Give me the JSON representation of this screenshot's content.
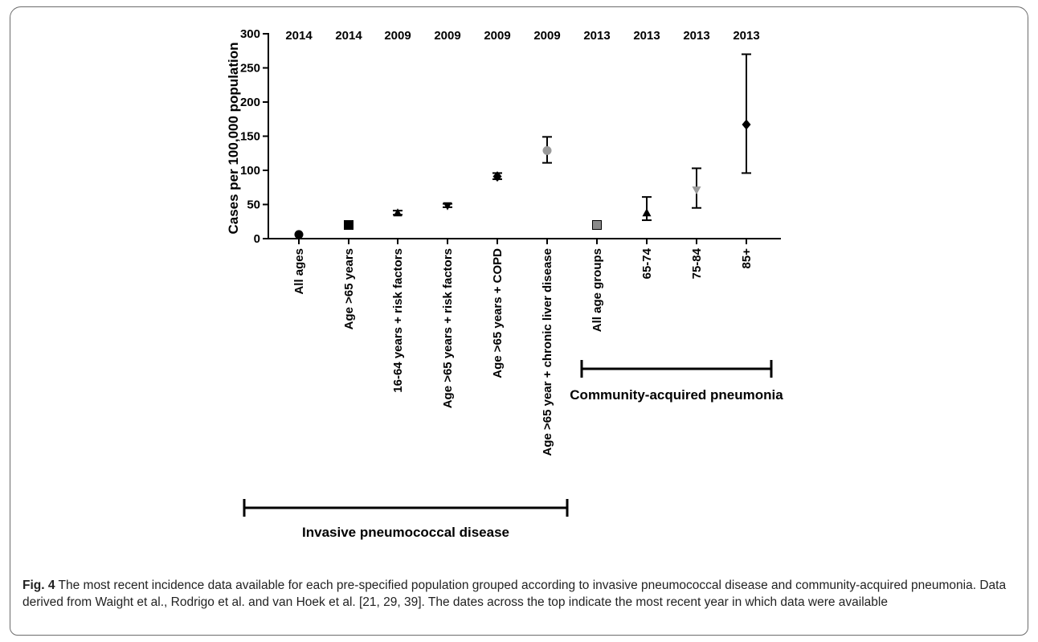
{
  "chart_data": {
    "type": "scatter",
    "ylabel": "Cases per 100,000 population",
    "ylim": [
      0,
      300
    ],
    "yticks": [
      "0",
      "50",
      "100",
      "150",
      "200",
      "250",
      "300"
    ],
    "ytick_values": [
      0,
      50,
      100,
      150,
      200,
      250,
      300
    ],
    "categories": [
      "All ages",
      "Age >65 years",
      "16-64 years + risk factors",
      "Age >65 years + risk factors",
      "Age >65 years + COPD",
      "Age >65 year + chronic liver disease",
      "All age groups",
      "65-74",
      "75-84",
      "85+"
    ],
    "years": [
      "2014",
      "2014",
      "2009",
      "2009",
      "2009",
      "2009",
      "2013",
      "2013",
      "2013",
      "2013"
    ],
    "points": [
      {
        "value": 6,
        "low": 6,
        "high": 6,
        "marker": "circle",
        "color": "#000000"
      },
      {
        "value": 20,
        "low": 18,
        "high": 22,
        "marker": "square",
        "color": "#000000"
      },
      {
        "value": 38,
        "low": 35,
        "high": 41,
        "marker": "triangle",
        "color": "#000000"
      },
      {
        "value": 48,
        "low": 46,
        "high": 51,
        "marker": "triangle-down",
        "color": "#000000"
      },
      {
        "value": 91,
        "low": 87,
        "high": 96,
        "marker": "diamond",
        "color": "#000000"
      },
      {
        "value": 129,
        "low": 111,
        "high": 149,
        "marker": "circle",
        "color": "#9a9a9a"
      },
      {
        "value": 20,
        "low": 18,
        "high": 23,
        "marker": "square",
        "color": "#8a8a8a"
      },
      {
        "value": 38,
        "low": 27,
        "high": 61,
        "marker": "triangle",
        "color": "#000000"
      },
      {
        "value": 71,
        "low": 45,
        "high": 103,
        "marker": "triangle-down",
        "color": "#9a9a9a"
      },
      {
        "value": 167,
        "low": 96,
        "high": 270,
        "marker": "diamond",
        "color": "#000000"
      }
    ],
    "groups": [
      {
        "label": "Invasive pneumococcal disease",
        "from": 0,
        "to": 5
      },
      {
        "label": "Community-acquired pneumonia",
        "from": 6,
        "to": 9
      }
    ]
  },
  "caption": {
    "lead": "Fig. 4",
    "text": " The most recent incidence data available for each pre-specified population grouped according to invasive pneumococcal disease and community-acquired pneumonia. Data derived from Waight et al., Rodrigo et al. and van Hoek et al. [21, 29, 39]. The dates across the top indicate the most recent year in which data were available"
  }
}
